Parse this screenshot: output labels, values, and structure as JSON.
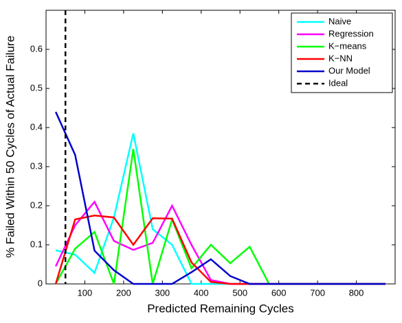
{
  "chart_data": {
    "type": "line",
    "x_label": "Predicted Remaining Cycles",
    "y_label": "% Failed Within 50 Cycles of Actual Failure",
    "x": [
      25,
      75,
      125,
      175,
      225,
      275,
      325,
      375,
      425,
      475,
      525,
      575,
      625,
      675,
      725,
      775,
      825,
      875
    ],
    "series": [
      {
        "name": "Naive",
        "color": "#00ffff",
        "values": [
          0.086,
          0.075,
          0.028,
          0.17,
          0.385,
          0.14,
          0.1,
          0,
          0,
          0,
          0,
          0,
          0,
          0,
          0,
          0,
          0,
          0
        ]
      },
      {
        "name": "Regression",
        "color": "#ff00ff",
        "values": [
          0.045,
          0.15,
          0.21,
          0.11,
          0.087,
          0.105,
          0.2,
          0.1,
          0.01,
          0,
          0,
          0,
          0,
          0,
          0,
          0,
          0,
          0
        ]
      },
      {
        "name": "K−means",
        "color": "#00ff00",
        "values": [
          0,
          0.09,
          0.133,
          0,
          0.345,
          0,
          0.165,
          0.04,
          0.1,
          0.053,
          0.095,
          0,
          0,
          0,
          0,
          0,
          0,
          0
        ]
      },
      {
        "name": "K−NN",
        "color": "#ff0000",
        "values": [
          0,
          0.165,
          0.175,
          0.17,
          0.1,
          0.168,
          0.167,
          0.055,
          0.005,
          0,
          0,
          0,
          0,
          0,
          0,
          0,
          0,
          0
        ]
      },
      {
        "name": "Our Model",
        "color": "#0000cc",
        "values": [
          0.44,
          0.33,
          0.085,
          0.035,
          0,
          0,
          0,
          0.03,
          0.063,
          0.02,
          0,
          0,
          0,
          0,
          0,
          0,
          0,
          0
        ]
      }
    ],
    "ideal": {
      "name": "Ideal",
      "color": "#000000",
      "x": 50
    },
    "xlim": [
      0,
      900
    ],
    "ylim": [
      0,
      0.7
    ],
    "xticks": [
      100,
      200,
      300,
      400,
      500,
      600,
      700,
      800
    ],
    "yticks": [
      0,
      0.1,
      0.2,
      0.3,
      0.4,
      0.5,
      0.6
    ],
    "legend": "upper-right"
  }
}
